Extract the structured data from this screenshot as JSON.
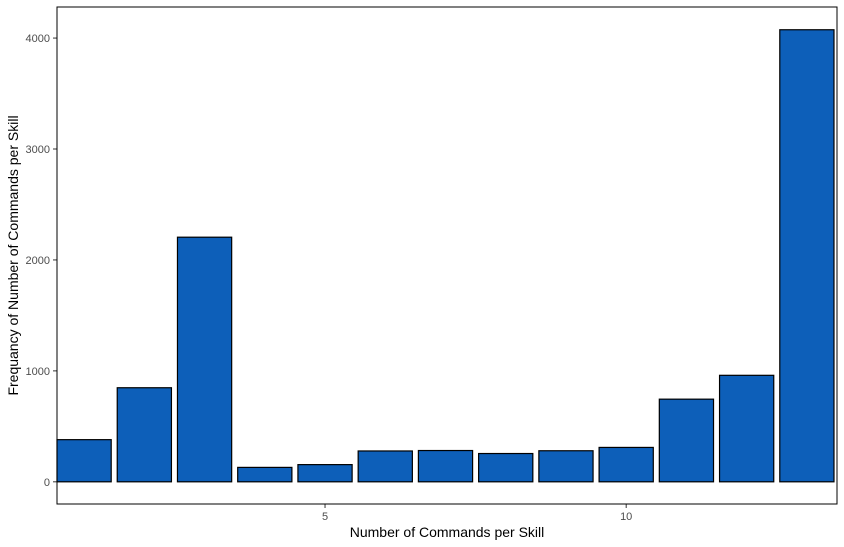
{
  "chart_data": {
    "type": "bar",
    "title": "",
    "xlabel": "Number of Commands per Skill",
    "ylabel": "Frequancy of Number of Commands per Skill",
    "categories": [
      1,
      2,
      3,
      4,
      5,
      6,
      7,
      8,
      9,
      10,
      11,
      12,
      13
    ],
    "values": [
      380,
      848,
      2205,
      130,
      155,
      278,
      282,
      255,
      280,
      310,
      745,
      960,
      4075
    ],
    "xticks": [
      5,
      10
    ],
    "yticks": [
      0,
      1000,
      2000,
      3000,
      4000
    ],
    "xlim": [
      0.55,
      13.5
    ],
    "ylim": [
      -200,
      4280
    ],
    "grid": false,
    "legend": "none",
    "bar_color": "#0d5fb9",
    "bar_border": "#000000"
  }
}
